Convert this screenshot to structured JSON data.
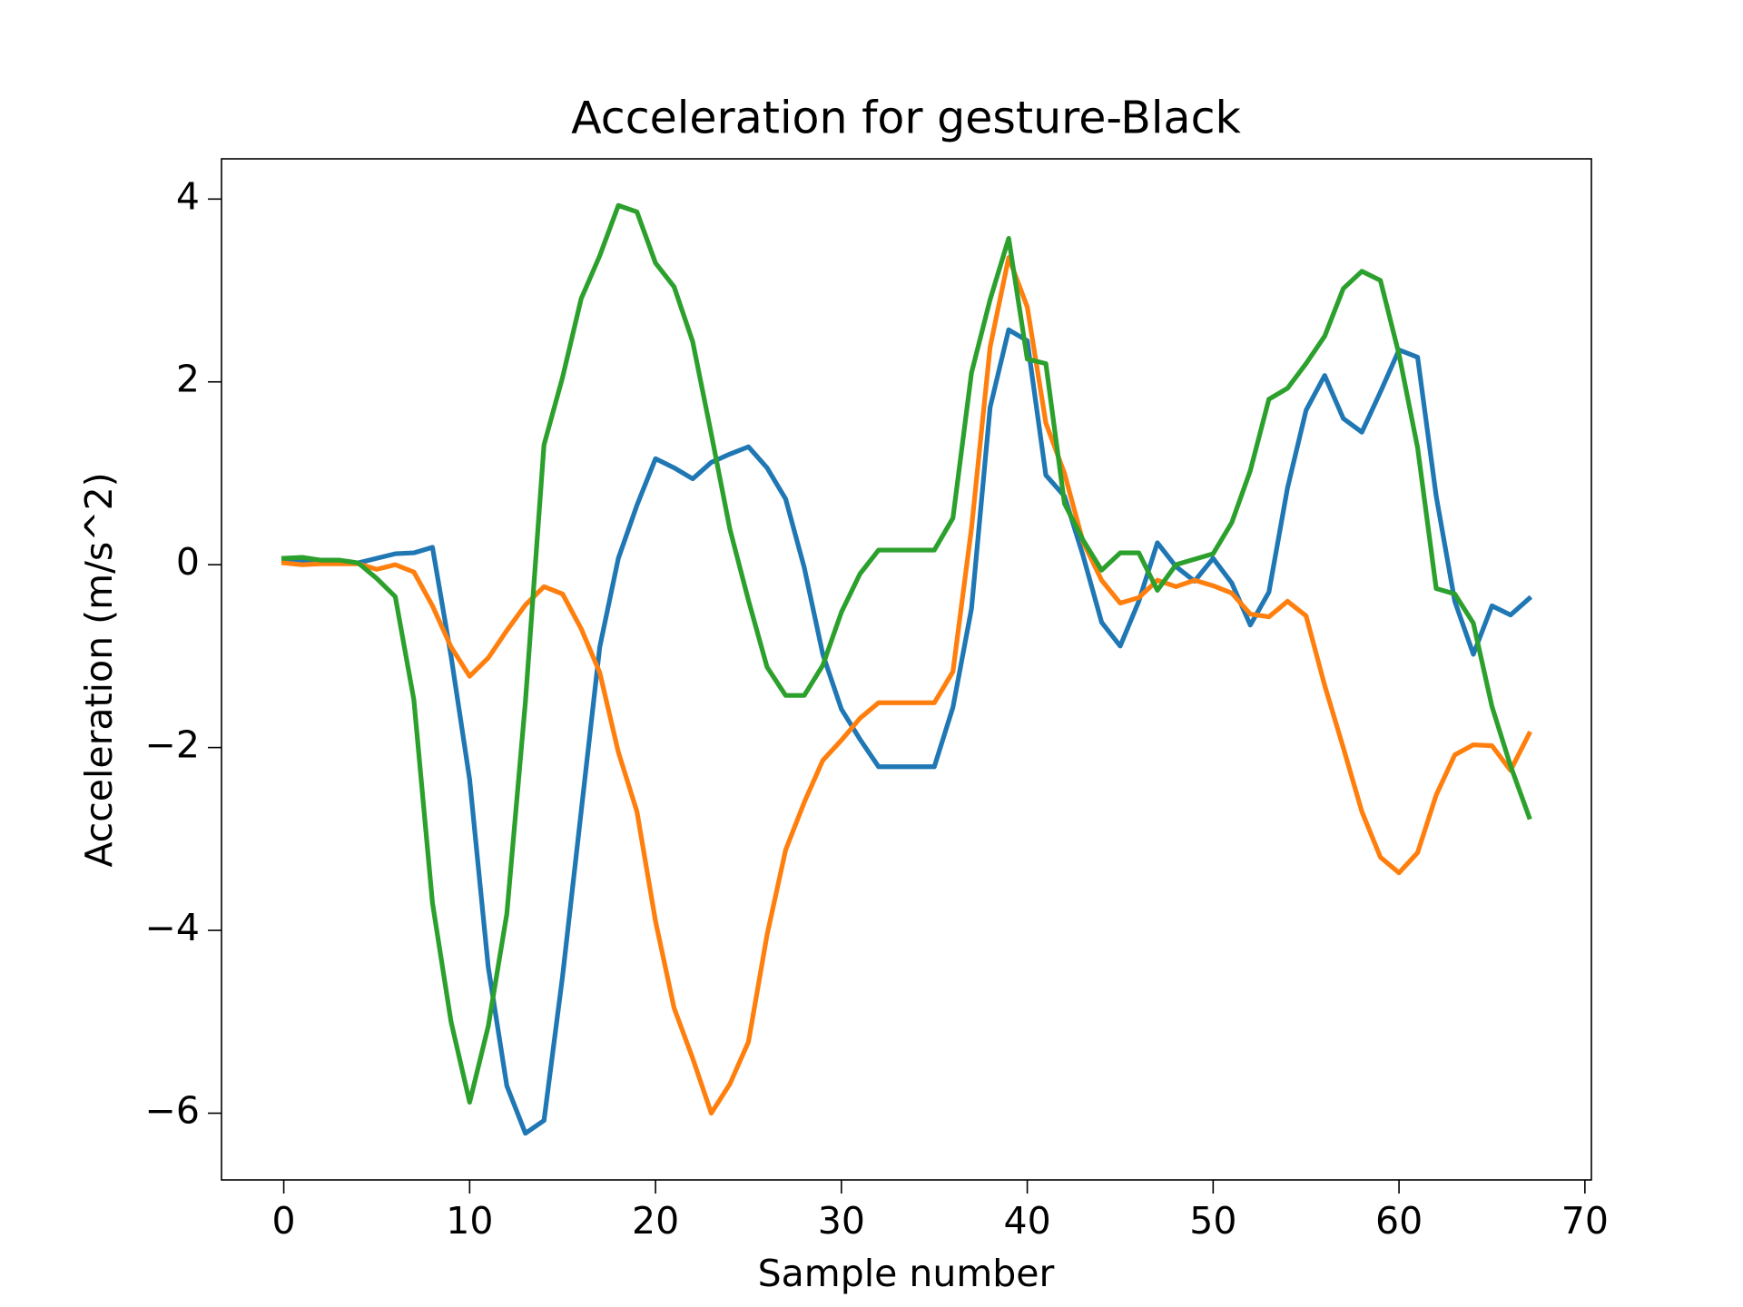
{
  "chart_data": {
    "type": "line",
    "title": "Acceleration for gesture-Black",
    "x_label": "Sample number",
    "y_label": "Acceleration (m/s^2)",
    "x": [
      0,
      1,
      2,
      3,
      4,
      5,
      6,
      7,
      8,
      9,
      10,
      11,
      12,
      13,
      14,
      15,
      16,
      17,
      18,
      19,
      20,
      21,
      22,
      23,
      24,
      25,
      26,
      27,
      28,
      29,
      30,
      31,
      32,
      33,
      34,
      35,
      36,
      37,
      38,
      39,
      40,
      41,
      42,
      43,
      44,
      45,
      46,
      47,
      48,
      49,
      50,
      51,
      52,
      53,
      54,
      55,
      56,
      57,
      58,
      59,
      60,
      61,
      62,
      63,
      64,
      65,
      66,
      67
    ],
    "series": [
      {
        "color": "#1f77b4",
        "values": [
          0.05,
          0.05,
          0.02,
          0.02,
          0.02,
          0.07,
          0.12,
          0.13,
          0.19,
          -1.0,
          -2.35,
          -4.4,
          -5.7,
          -6.22,
          -6.08,
          -4.5,
          -2.7,
          -0.9,
          0.07,
          0.65,
          1.16,
          1.06,
          0.94,
          1.12,
          1.21,
          1.29,
          1.06,
          0.72,
          -0.03,
          -0.98,
          -1.58,
          -1.91,
          -2.21,
          -2.21,
          -2.21,
          -2.21,
          -1.56,
          -0.48,
          1.72,
          2.57,
          2.45,
          0.98,
          0.75,
          0.1,
          -0.63,
          -0.89,
          -0.4,
          0.24,
          -0.02,
          -0.18,
          0.07,
          -0.2,
          -0.66,
          -0.3,
          0.84,
          1.69,
          2.07,
          1.6,
          1.45,
          1.89,
          2.35,
          2.27,
          0.75,
          -0.4,
          -0.98,
          -0.45,
          -0.55,
          -0.37
        ]
      },
      {
        "color": "#ff7f0e",
        "values": [
          0.02,
          0,
          0.01,
          0.01,
          0.01,
          -0.05,
          0.0,
          -0.08,
          -0.45,
          -0.9,
          -1.22,
          -1.02,
          -0.72,
          -0.44,
          -0.24,
          -0.32,
          -0.7,
          -1.18,
          -2.05,
          -2.7,
          -3.9,
          -4.85,
          -5.4,
          -6.0,
          -5.68,
          -5.22,
          -4.05,
          -3.12,
          -2.6,
          -2.14,
          -1.92,
          -1.68,
          -1.51,
          -1.51,
          -1.51,
          -1.51,
          -1.17,
          0.4,
          2.38,
          3.36,
          2.82,
          1.55,
          1.0,
          0.25,
          -0.17,
          -0.42,
          -0.36,
          -0.17,
          -0.24,
          -0.17,
          -0.23,
          -0.31,
          -0.54,
          -0.57,
          -0.4,
          -0.56,
          -1.32,
          -2.0,
          -2.7,
          -3.2,
          -3.37,
          -3.15,
          -2.52,
          -2.08,
          -1.97,
          -1.98,
          -2.25,
          -1.85
        ]
      },
      {
        "color": "#2ca02c",
        "values": [
          0.07,
          0.08,
          0.05,
          0.05,
          0.02,
          -0.15,
          -0.35,
          -1.48,
          -3.7,
          -5.0,
          -5.88,
          -5.05,
          -3.82,
          -1.5,
          1.31,
          2.05,
          2.91,
          3.38,
          3.93,
          3.86,
          3.3,
          3.04,
          2.44,
          1.43,
          0.39,
          -0.39,
          -1.12,
          -1.43,
          -1.43,
          -1.1,
          -0.52,
          -0.1,
          0.16,
          0.16,
          0.16,
          0.16,
          0.51,
          2.1,
          2.9,
          3.57,
          2.25,
          2.2,
          0.67,
          0.27,
          -0.06,
          0.13,
          0.13,
          -0.28,
          0.0,
          0.06,
          0.12,
          0.46,
          1.03,
          1.81,
          1.93,
          2.2,
          2.5,
          3.02,
          3.21,
          3.11,
          2.3,
          1.28,
          -0.26,
          -0.32,
          -0.64,
          -1.55,
          -2.2,
          -2.76
        ]
      }
    ],
    "xlim": [
      -3.35,
      70.35
    ],
    "xticks": [
      0,
      10,
      20,
      30,
      40,
      50,
      60,
      70
    ],
    "ylim": [
      -6.73,
      4.44
    ],
    "yticks": [
      {
        "value": -6,
        "label": "−6"
      },
      {
        "value": -4,
        "label": "−4"
      },
      {
        "value": -2,
        "label": "−2"
      },
      0,
      2,
      4
    ],
    "grid": false
  }
}
